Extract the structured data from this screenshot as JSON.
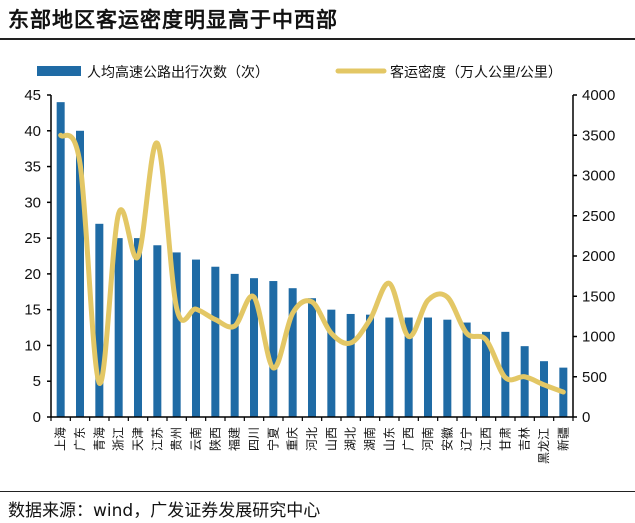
{
  "title": "东部地区客运密度明显高于中西部",
  "source": "数据来源：wind，广发证券发展研究中心",
  "chart_data": {
    "type": "bar+line",
    "title": "东部地区客运密度明显高于中西部",
    "categories": [
      "上海",
      "广东",
      "青海",
      "浙江",
      "天津",
      "江苏",
      "贵州",
      "云南",
      "陕西",
      "福建",
      "四川",
      "宁夏",
      "重庆",
      "河北",
      "山西",
      "湖北",
      "湖南",
      "山东",
      "广西",
      "河南",
      "安徽",
      "辽宁",
      "江西",
      "甘肃",
      "吉林",
      "黑龙江",
      "新疆"
    ],
    "series": [
      {
        "name": "人均高速公路出行次数（次）",
        "type": "bar",
        "axis": "left",
        "color": "#1F6BA5",
        "values": [
          44,
          40,
          27,
          25,
          25,
          24,
          23,
          22,
          21,
          20,
          19.4,
          19,
          18,
          16.6,
          15,
          14.4,
          14.3,
          13.9,
          13.9,
          13.9,
          13.6,
          13.2,
          11.9,
          11.9,
          9.9,
          7.8,
          6.9
        ]
      },
      {
        "name": "客运密度（万人公里/公里）",
        "type": "line",
        "axis": "right",
        "color": "#E3C765",
        "values": [
          3500,
          3150,
          420,
          2530,
          1990,
          3400,
          1350,
          1340,
          1210,
          1130,
          1490,
          610,
          1290,
          1430,
          1040,
          920,
          1210,
          1660,
          1000,
          1450,
          1490,
          1040,
          960,
          490,
          500,
          400,
          310
        ]
      }
    ],
    "left_axis": {
      "min": 0,
      "max": 45,
      "ticks": [
        0,
        5,
        10,
        15,
        20,
        25,
        30,
        35,
        40,
        45
      ]
    },
    "right_axis": {
      "min": 0,
      "max": 4000,
      "ticks": [
        0,
        500,
        1000,
        1500,
        2000,
        2500,
        3000,
        3500,
        4000
      ]
    },
    "legend_position": "top",
    "grid": false
  }
}
